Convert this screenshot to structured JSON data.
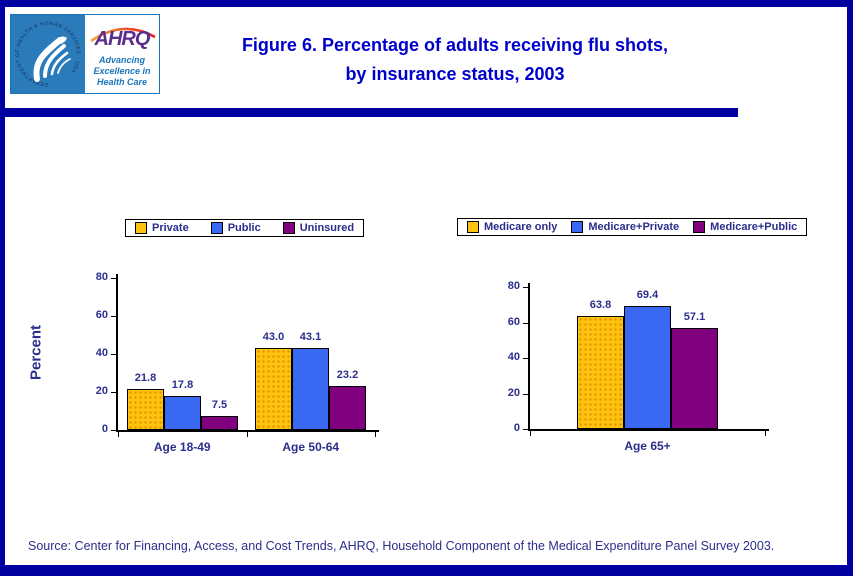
{
  "header": {
    "title_line1": "Figure 6. Percentage of adults receiving flu shots,",
    "title_line2": "by insurance status, 2003",
    "logo": {
      "seal_ring_text": "DEPARTMENT OF HEALTH & HUMAN SERVICES · USA",
      "ahrq_acronym": "AHRQ",
      "tagline_line1": "Advancing",
      "tagline_line2": "Excellence in",
      "tagline_line3": "Health Care"
    }
  },
  "footer": {
    "source": "Source: Center for Financing, Access, and Cost Trends, AHRQ, Household Component of the Medical Expenditure Panel Survey 2003."
  },
  "colors": {
    "frame_navy": "#0000A0",
    "title_blue": "#0000CC",
    "label_navy": "#2B2E8C",
    "series_gold": "#FFC20E",
    "series_blue": "#3968F2",
    "series_purple": "#800080",
    "hhs_logo_blue": "#2B7BBB",
    "ahrq_purple": "#5B2D8E",
    "ahrq_blue": "#1B75BC"
  },
  "chart_data": [
    {
      "type": "bar",
      "title": "",
      "xlabel": "",
      "ylabel": "Percent",
      "ylim": [
        0,
        80
      ],
      "yticks": [
        0,
        20,
        40,
        60,
        80
      ],
      "grid": false,
      "legend_position": "top",
      "categories": [
        "Age 18-49",
        "Age 50-64"
      ],
      "series": [
        {
          "name": "Private",
          "color": "#FFC20E",
          "pattern": "dots",
          "values": [
            21.8,
            43.0
          ]
        },
        {
          "name": "Public",
          "color": "#3968F2",
          "pattern": "solid",
          "values": [
            17.8,
            43.1
          ]
        },
        {
          "name": "Uninsured",
          "color": "#800080",
          "pattern": "solid",
          "values": [
            7.5,
            23.2
          ]
        }
      ]
    },
    {
      "type": "bar",
      "title": "",
      "xlabel": "",
      "ylabel": "",
      "ylim": [
        0,
        80
      ],
      "yticks": [
        0,
        20,
        40,
        60,
        80
      ],
      "grid": false,
      "legend_position": "top",
      "categories": [
        "Age 65+"
      ],
      "series": [
        {
          "name": "Medicare only",
          "color": "#FFC20E",
          "pattern": "dots",
          "values": [
            63.8
          ]
        },
        {
          "name": "Medicare+Private",
          "color": "#3968F2",
          "pattern": "solid",
          "values": [
            69.4
          ]
        },
        {
          "name": "Medicare+Public",
          "color": "#800080",
          "pattern": "solid",
          "values": [
            57.1
          ]
        }
      ]
    }
  ]
}
